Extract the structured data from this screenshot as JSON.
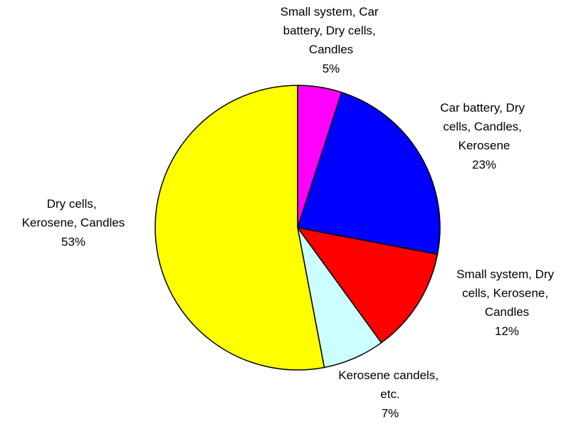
{
  "chart_data": {
    "type": "pie",
    "categories": [
      "Small system, Car battery, Dry cells, Candles",
      "Car battery, Dry cells, Candles, Kerosene",
      "Small system, Dry cells, Kerosene, Candles",
      "Kerosene candels, etc.",
      "Dry cells, Kerosene, Candles"
    ],
    "values": [
      5,
      23,
      12,
      7,
      53
    ],
    "value_labels": [
      "5%",
      "23%",
      "12%",
      "7%",
      "53%"
    ],
    "colors": [
      "#ff00ff",
      "#0000ff",
      "#ff0000",
      "#ccffff",
      "#ffff00"
    ]
  }
}
